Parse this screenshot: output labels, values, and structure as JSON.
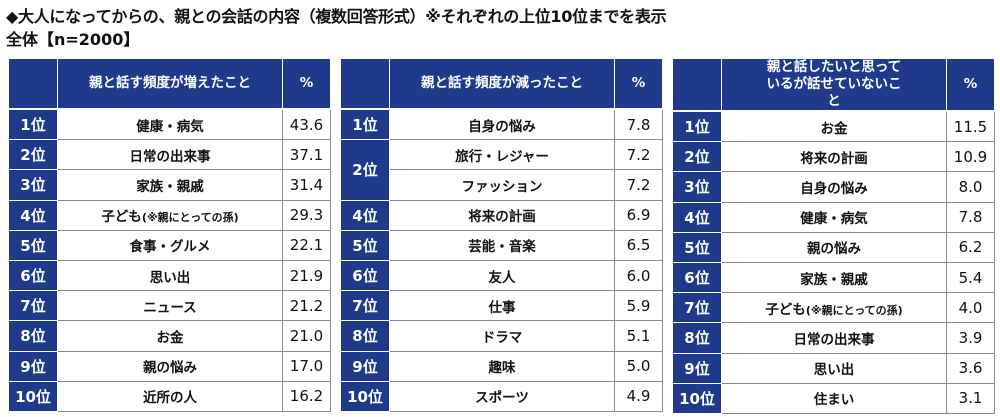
{
  "title": "◆大人になってからの、親との会話の内容（複数回答形式）※それぞれの上位10位までを表示",
  "subtitle": "全体【n=2000】",
  "colors": {
    "header": "#1f3a8a",
    "text": "#111111"
  },
  "chart_data": {
    "type": "table",
    "tables": [
      {
        "header": "親と話す頻度が増えたこと",
        "pct_header": "%",
        "rows": [
          {
            "rank": "1位",
            "item": "健康・病気",
            "value": "43.6"
          },
          {
            "rank": "2位",
            "item": "日常の出来事",
            "value": "37.1"
          },
          {
            "rank": "3位",
            "item": "家族・親戚",
            "value": "31.4"
          },
          {
            "rank": "4位",
            "item": "子ども",
            "note": "(※親にとっての孫)",
            "value": "29.3"
          },
          {
            "rank": "5位",
            "item": "食事・グルメ",
            "value": "22.1"
          },
          {
            "rank": "6位",
            "item": "思い出",
            "value": "21.9"
          },
          {
            "rank": "7位",
            "item": "ニュース",
            "value": "21.2"
          },
          {
            "rank": "8位",
            "item": "お金",
            "value": "21.0"
          },
          {
            "rank": "9位",
            "item": "親の悩み",
            "value": "17.0"
          },
          {
            "rank": "10位",
            "item": "近所の人",
            "value": "16.2"
          }
        ]
      },
      {
        "header": "親と話す頻度が減ったこと",
        "pct_header": "%",
        "rows": [
          {
            "rank": "1位",
            "item": "自身の悩み",
            "value": "7.8"
          },
          {
            "rank": "2位",
            "item": "旅行・レジャー",
            "value": "7.2"
          },
          {
            "rank": "2位",
            "item": "ファッション",
            "value": "7.2"
          },
          {
            "rank": "4位",
            "item": "将来の計画",
            "value": "6.9"
          },
          {
            "rank": "5位",
            "item": "芸能・音楽",
            "value": "6.5"
          },
          {
            "rank": "6位",
            "item": "友人",
            "value": "6.0"
          },
          {
            "rank": "7位",
            "item": "仕事",
            "value": "5.9"
          },
          {
            "rank": "8位",
            "item": "ドラマ",
            "value": "5.1"
          },
          {
            "rank": "9位",
            "item": "趣味",
            "value": "5.0"
          },
          {
            "rank": "10位",
            "item": "スポーツ",
            "value": "4.9"
          }
        ]
      },
      {
        "header": "親と話したいと思っているが話せていないこと",
        "pct_header": "%",
        "rows": [
          {
            "rank": "1位",
            "item": "お金",
            "value": "11.5"
          },
          {
            "rank": "2位",
            "item": "将来の計画",
            "value": "10.9"
          },
          {
            "rank": "3位",
            "item": "自身の悩み",
            "value": "8.0"
          },
          {
            "rank": "4位",
            "item": "健康・病気",
            "value": "7.8"
          },
          {
            "rank": "5位",
            "item": "親の悩み",
            "value": "6.2"
          },
          {
            "rank": "6位",
            "item": "家族・親戚",
            "value": "5.4"
          },
          {
            "rank": "7位",
            "item": "子ども",
            "note": "(※親にとっての孫)",
            "value": "4.0"
          },
          {
            "rank": "8位",
            "item": "日常の出来事",
            "value": "3.9"
          },
          {
            "rank": "9位",
            "item": "思い出",
            "value": "3.6"
          },
          {
            "rank": "10位",
            "item": "住まい",
            "value": "3.1"
          }
        ]
      }
    ]
  }
}
